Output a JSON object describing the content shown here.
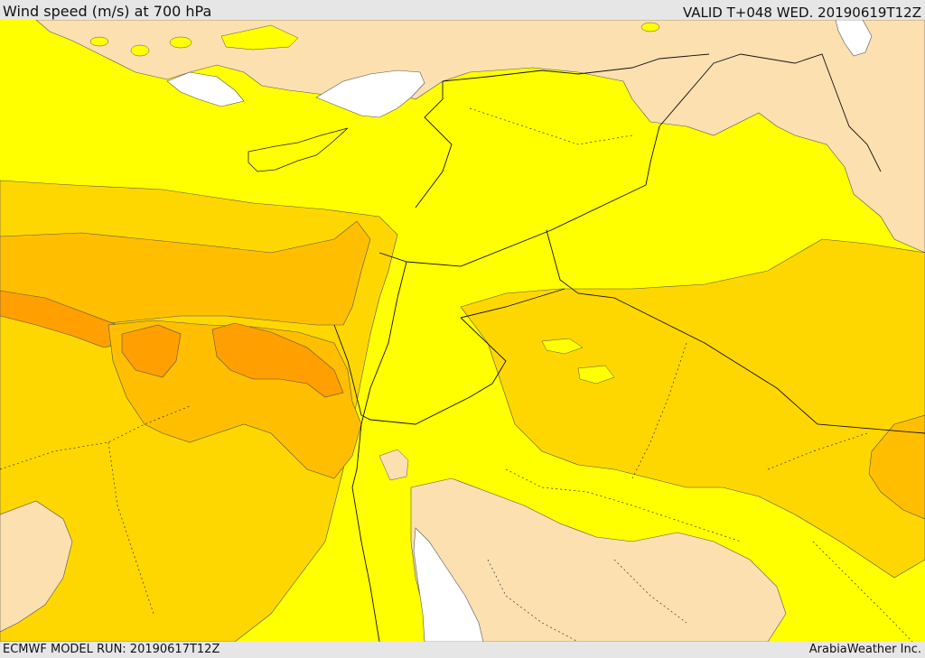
{
  "header": {
    "title": "Wind speed (m/s) at 700 hPa",
    "valid": "VALID T+048 WED. 20190619T12Z"
  },
  "footer": {
    "model_run": "ECMWF MODEL RUN: 20190617T12Z",
    "credit": "ArabiaWeather Inc."
  },
  "map": {
    "colors": {
      "land_calm": "#fde0b0",
      "band_5_10": "#ffff00",
      "band_10_15": "#ffd700",
      "band_15_20": "#ffbf00",
      "band_20_25": "#ff9f00",
      "water": "#ffffff",
      "border": "#000000"
    }
  }
}
